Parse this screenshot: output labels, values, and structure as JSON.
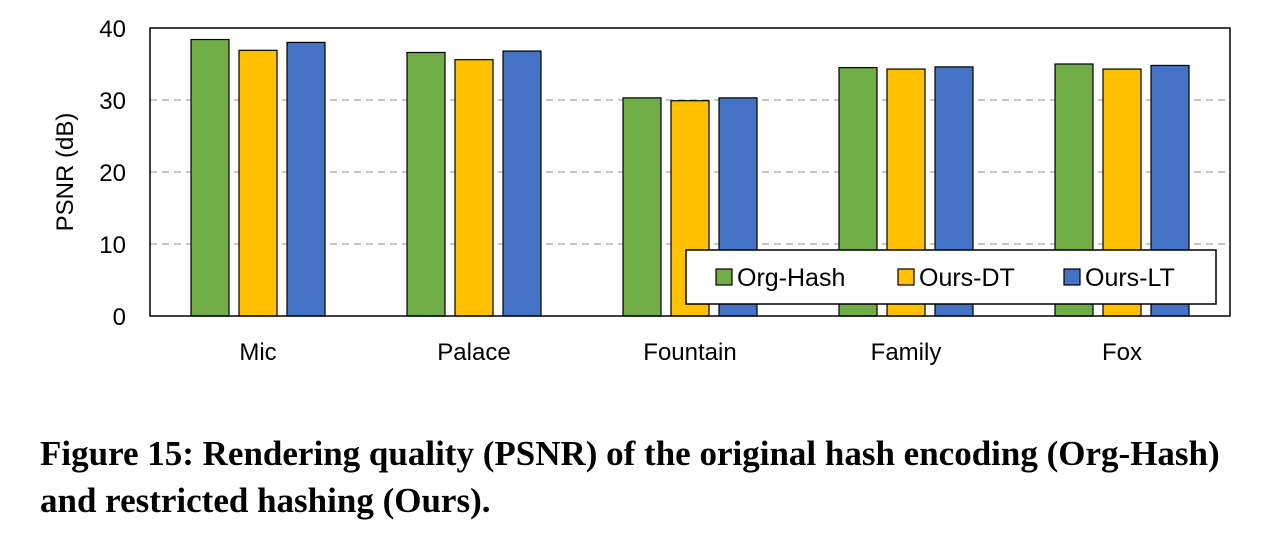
{
  "chart_data": {
    "type": "bar",
    "categories": [
      "Mic",
      "Palace",
      "Fountain",
      "Family",
      "Fox"
    ],
    "series": [
      {
        "name": "Org-Hash",
        "color": "#70ad47",
        "values": [
          38.4,
          36.6,
          30.3,
          34.5,
          35.0
        ]
      },
      {
        "name": "Ours-DT",
        "color": "#ffc000",
        "values": [
          36.9,
          35.6,
          29.9,
          34.3,
          34.3
        ]
      },
      {
        "name": "Ours-LT",
        "color": "#4472c4",
        "values": [
          38.0,
          36.8,
          30.3,
          34.6,
          34.8
        ]
      }
    ],
    "ylabel": "PSNR (dB)",
    "ylim": [
      0,
      40
    ],
    "yticks": [
      0,
      10,
      20,
      30,
      40
    ],
    "grid": "horizontal dashed",
    "legend_position": "bottom-right"
  },
  "caption": "Figure 15: Rendering quality (PSNR) of the original hash encoding (Org-Hash) and restricted hashing (Ours)."
}
